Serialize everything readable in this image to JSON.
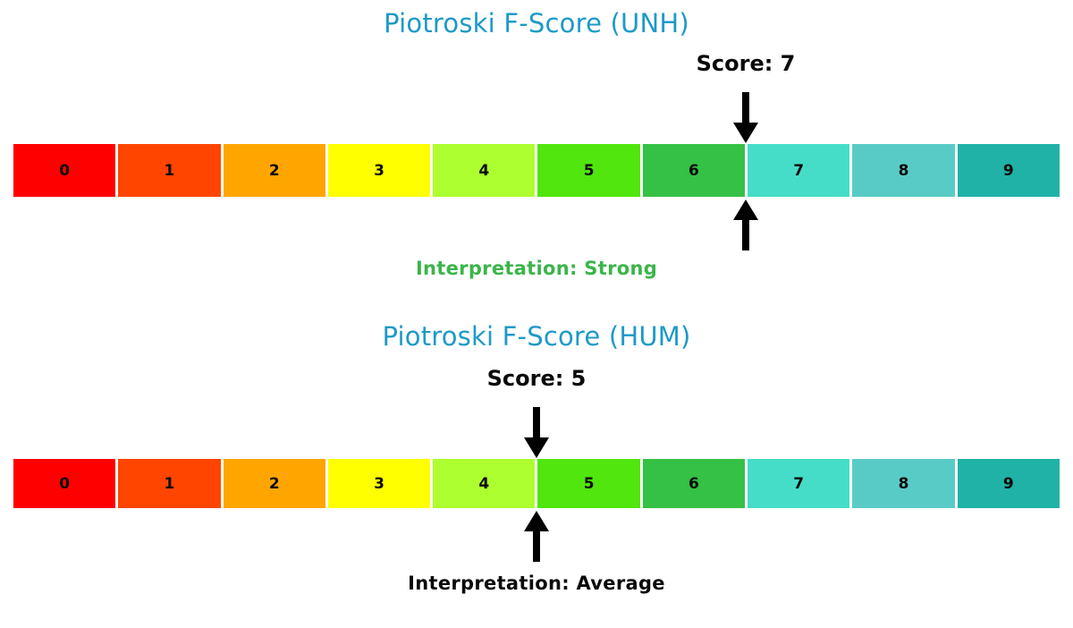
{
  "colors": {
    "title": "#1d9ac8",
    "text": "#0a0a0a",
    "arrow": "#000000",
    "background": "#ffffff"
  },
  "chart_data": [
    {
      "type": "scale",
      "title": "Piotroski F-Score (UNH)",
      "score": 7,
      "score_label": "Score: 7",
      "interpretation": "Strong",
      "interpretation_label": "Interpretation: Strong",
      "interpretation_color": "#3bb54a",
      "categories": [
        "0",
        "1",
        "2",
        "3",
        "4",
        "5",
        "6",
        "7",
        "8",
        "9"
      ],
      "cell_colors": [
        "#ff0000",
        "#ff4500",
        "#ffa500",
        "#ffff00",
        "#adff2f",
        "#50e60e",
        "#35c145",
        "#45ddc8",
        "#59cbc6",
        "#20b2a6"
      ],
      "xlim": [
        0,
        10
      ],
      "marker": "arrows point to left edge of cell 7",
      "legend": "none",
      "grid": false
    },
    {
      "type": "scale",
      "title": "Piotroski F-Score (HUM)",
      "score": 5,
      "score_label": "Score: 5",
      "interpretation": "Average",
      "interpretation_label": "Interpretation: Average",
      "interpretation_color": "#0a0a0a",
      "categories": [
        "0",
        "1",
        "2",
        "3",
        "4",
        "5",
        "6",
        "7",
        "8",
        "9"
      ],
      "cell_colors": [
        "#ff0000",
        "#ff4500",
        "#ffa500",
        "#ffff00",
        "#adff2f",
        "#50e60e",
        "#35c145",
        "#45ddc8",
        "#59cbc6",
        "#20b2a6"
      ],
      "xlim": [
        0,
        10
      ],
      "marker": "arrows point to left edge of cell 5",
      "legend": "none",
      "grid": false
    }
  ]
}
